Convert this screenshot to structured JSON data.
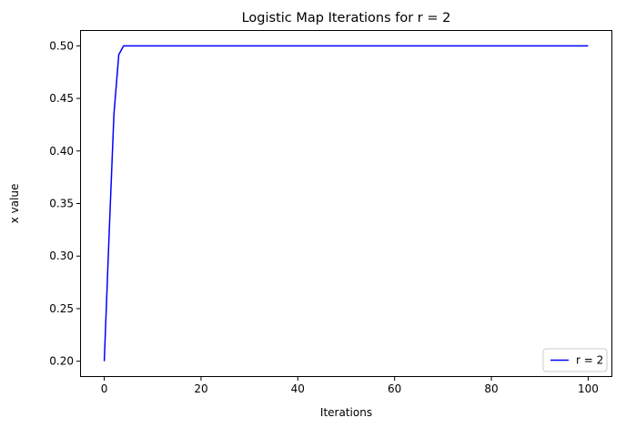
{
  "chart_data": {
    "type": "line",
    "title": "Logistic Map Iterations for r = 2",
    "xlabel": "Iterations",
    "ylabel": "x value",
    "xlim": [
      -5,
      105
    ],
    "ylim": [
      0.185,
      0.515
    ],
    "x_ticks": [
      0,
      20,
      40,
      60,
      80,
      100
    ],
    "y_ticks": [
      0.2,
      0.25,
      0.3,
      0.35,
      0.4,
      0.45,
      0.5
    ],
    "x_tick_labels": [
      "0",
      "20",
      "40",
      "60",
      "80",
      "100"
    ],
    "y_tick_labels": [
      "0.20",
      "0.25",
      "0.30",
      "0.35",
      "0.40",
      "0.45",
      "0.50"
    ],
    "grid": false,
    "legend_position": "bottom-right",
    "series": [
      {
        "name": "r = 2",
        "color": "#0000ff",
        "x": [
          0,
          1,
          2,
          3,
          4,
          5,
          100
        ],
        "y": [
          0.2,
          0.32,
          0.4352,
          0.49160192,
          0.49998589,
          0.5,
          0.5
        ]
      }
    ]
  }
}
